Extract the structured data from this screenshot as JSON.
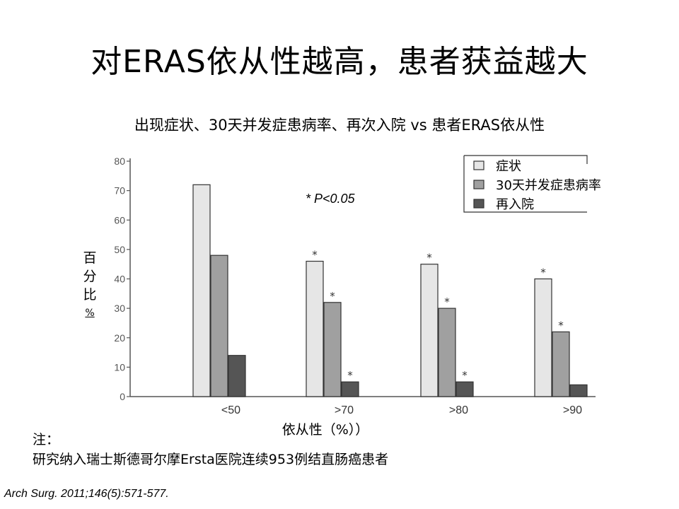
{
  "slide": {
    "title": "对ERAS依从性越高，患者获益越大",
    "note_label": "注：",
    "note_text": "研究纳入瑞士斯德哥尔摩Ersta医院连续953例结直肠癌患者",
    "citation": "Arch Surg. 2011;146(5):571-577."
  },
  "chart_data": {
    "type": "bar",
    "title": "出现症状、30天并发症患病率、再次入院 vs 患者ERAS依从性",
    "xlabel": "依从性（%））",
    "ylabel_chars": [
      "百",
      "分",
      "比"
    ],
    "ylabel_unit": "%",
    "ylim": [
      0,
      80
    ],
    "yticks": [
      0,
      10,
      20,
      30,
      40,
      50,
      60,
      70,
      80
    ],
    "categories": [
      "<50",
      ">70",
      ">80",
      ">90"
    ],
    "series": [
      {
        "name": "症状",
        "color": "#e6e6e6",
        "values": [
          72,
          46,
          45,
          40
        ],
        "significant": [
          false,
          true,
          true,
          true
        ]
      },
      {
        "name": "30天并发症患病率",
        "color": "#a0a0a0",
        "values": [
          48,
          32,
          30,
          22
        ],
        "significant": [
          false,
          true,
          true,
          true
        ]
      },
      {
        "name": "再入院",
        "color": "#555555",
        "values": [
          14,
          5,
          5,
          4
        ],
        "significant": [
          false,
          true,
          true,
          false
        ]
      }
    ],
    "significance_marker": "*",
    "annotation": "* P<0.05",
    "legend_position": "top-right",
    "grid": false
  }
}
